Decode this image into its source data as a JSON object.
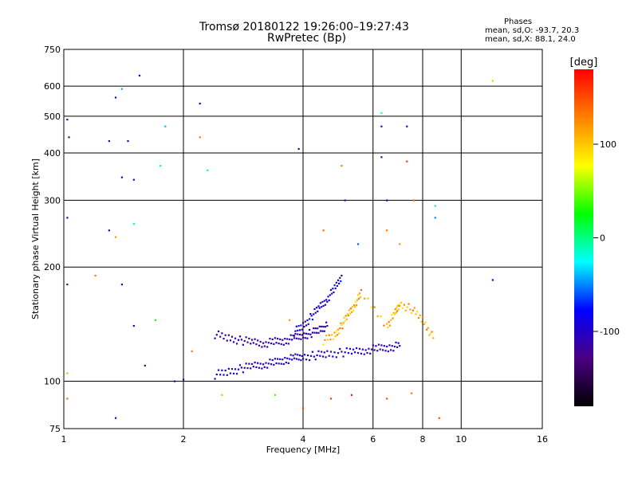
{
  "header": {
    "title_line1": "Tromsø 20180122 19:26:00–19:27:43",
    "title_line2": "RwPretec (Bp)",
    "stats_title": "Phases",
    "stats_o": "mean, sd,O: -93.7, 20.3",
    "stats_x": "mean, sd,X:  88.1, 24.0"
  },
  "colors": {
    "grid": "#000000",
    "colorbar_stops": [
      "#000000",
      "#4b0082",
      "#0000ff",
      "#00ffff",
      "#00ff00",
      "#ffff00",
      "#ff8000",
      "#ff0000"
    ]
  },
  "chart_data": {
    "type": "scatter",
    "xlabel": "Frequency [MHz]",
    "ylabel": "Stationary phase Virtual Height [km]",
    "x_scale": "log",
    "y_scale": "log",
    "xlim": [
      1,
      16
    ],
    "ylim": [
      75,
      750
    ],
    "grid": true,
    "x_ticks": [
      1,
      2,
      4,
      6,
      8,
      10,
      16
    ],
    "y_ticks": [
      75,
      100,
      200,
      300,
      400,
      500,
      600,
      750
    ],
    "colorbar": {
      "label": "[deg]",
      "range": [
        -180,
        180
      ],
      "ticks": [
        -100,
        0,
        100
      ]
    },
    "traces": [
      {
        "name": "",
        "phase": -100,
        "x": [
          2.4,
          2.6,
          2.8,
          3.0,
          3.2,
          3.4,
          3.6,
          3.8,
          4.0,
          4.3,
          4.6,
          5.0,
          5.4,
          5.8,
          6.2,
          6.6,
          7.0
        ],
        "y": [
          104,
          106,
          108,
          110,
          111,
          112,
          114,
          115,
          116,
          117,
          118,
          119,
          120,
          121,
          122,
          123,
          124
        ]
      },
      {
        "name": "",
        "phase": -110,
        "x": [
          2.4,
          2.6,
          2.8,
          3.0,
          3.2,
          3.4,
          3.6,
          3.8,
          4.0,
          4.2,
          4.4,
          4.6
        ],
        "y": [
          133,
          130,
          128,
          127,
          126,
          127,
          128,
          130,
          132,
          134,
          137,
          140
        ]
      },
      {
        "name": "",
        "phase": -95,
        "x": [
          3.8,
          4.0,
          4.2,
          4.4,
          4.6,
          4.8,
          5.0
        ],
        "y": [
          135,
          140,
          148,
          157,
          165,
          175,
          190
        ]
      },
      {
        "name": "",
        "phase": 110,
        "x": [
          4.5,
          4.8,
          5.0,
          5.2,
          5.4,
          5.6,
          6.5,
          6.8,
          7.0,
          7.5,
          8.0,
          8.5
        ],
        "y": [
          128,
          132,
          140,
          150,
          160,
          170,
          140,
          150,
          160,
          155,
          145,
          130
        ]
      }
    ],
    "scatter_points": [
      {
        "x": 1.02,
        "y": 490,
        "phase": -110
      },
      {
        "x": 1.03,
        "y": 440,
        "phase": -120
      },
      {
        "x": 1.02,
        "y": 270,
        "phase": -110
      },
      {
        "x": 1.02,
        "y": 180,
        "phase": -120
      },
      {
        "x": 1.3,
        "y": 430,
        "phase": -110
      },
      {
        "x": 1.35,
        "y": 560,
        "phase": -105
      },
      {
        "x": 1.4,
        "y": 345,
        "phase": -110
      },
      {
        "x": 1.5,
        "y": 340,
        "phase": -105
      },
      {
        "x": 1.55,
        "y": 640,
        "phase": -95
      },
      {
        "x": 1.45,
        "y": 430,
        "phase": -100
      },
      {
        "x": 1.8,
        "y": 470,
        "phase": -40
      },
      {
        "x": 1.75,
        "y": 370,
        "phase": -30
      },
      {
        "x": 1.4,
        "y": 590,
        "phase": -40
      },
      {
        "x": 2.2,
        "y": 540,
        "phase": -100
      },
      {
        "x": 2.2,
        "y": 440,
        "phase": 130
      },
      {
        "x": 2.3,
        "y": 360,
        "phase": -30
      },
      {
        "x": 3.9,
        "y": 410,
        "phase": -105
      },
      {
        "x": 1.3,
        "y": 250,
        "phase": -110
      },
      {
        "x": 1.35,
        "y": 240,
        "phase": 120
      },
      {
        "x": 1.5,
        "y": 260,
        "phase": -20
      },
      {
        "x": 1.4,
        "y": 180,
        "phase": -105
      },
      {
        "x": 1.5,
        "y": 140,
        "phase": -100
      },
      {
        "x": 1.7,
        "y": 145,
        "phase": 30
      },
      {
        "x": 1.6,
        "y": 110,
        "phase": -120
      },
      {
        "x": 1.2,
        "y": 190,
        "phase": 130
      },
      {
        "x": 1.35,
        "y": 80,
        "phase": -120
      },
      {
        "x": 1.02,
        "y": 90,
        "phase": 140
      },
      {
        "x": 1.02,
        "y": 105,
        "phase": 110
      },
      {
        "x": 1.9,
        "y": 100,
        "phase": -100
      },
      {
        "x": 2.0,
        "y": 101,
        "phase": -110
      },
      {
        "x": 2.1,
        "y": 120,
        "phase": 130
      },
      {
        "x": 5.0,
        "y": 370,
        "phase": 130
      },
      {
        "x": 5.1,
        "y": 300,
        "phase": -100
      },
      {
        "x": 6.3,
        "y": 470,
        "phase": -95
      },
      {
        "x": 6.3,
        "y": 510,
        "phase": -20
      },
      {
        "x": 6.3,
        "y": 390,
        "phase": -110
      },
      {
        "x": 6.5,
        "y": 300,
        "phase": -100
      },
      {
        "x": 7.3,
        "y": 470,
        "phase": -100
      },
      {
        "x": 7.3,
        "y": 380,
        "phase": 160
      },
      {
        "x": 7.6,
        "y": 300,
        "phase": 140
      },
      {
        "x": 8.6,
        "y": 290,
        "phase": -30
      },
      {
        "x": 8.6,
        "y": 270,
        "phase": -50
      },
      {
        "x": 12.0,
        "y": 620,
        "phase": 100
      },
      {
        "x": 12.0,
        "y": 185,
        "phase": -80
      },
      {
        "x": 4.5,
        "y": 250,
        "phase": 140
      },
      {
        "x": 5.5,
        "y": 230,
        "phase": -60
      },
      {
        "x": 6.5,
        "y": 250,
        "phase": 130
      },
      {
        "x": 7.0,
        "y": 230,
        "phase": 120
      },
      {
        "x": 4.0,
        "y": 85,
        "phase": 150
      },
      {
        "x": 4.7,
        "y": 90,
        "phase": 160
      },
      {
        "x": 5.3,
        "y": 92,
        "phase": 170
      },
      {
        "x": 6.5,
        "y": 90,
        "phase": 150
      },
      {
        "x": 7.5,
        "y": 93,
        "phase": 130
      },
      {
        "x": 8.8,
        "y": 80,
        "phase": 150
      },
      {
        "x": 2.5,
        "y": 92,
        "phase": 110
      },
      {
        "x": 3.4,
        "y": 92,
        "phase": 40
      },
      {
        "x": 3.7,
        "y": 145,
        "phase": 120
      }
    ]
  }
}
